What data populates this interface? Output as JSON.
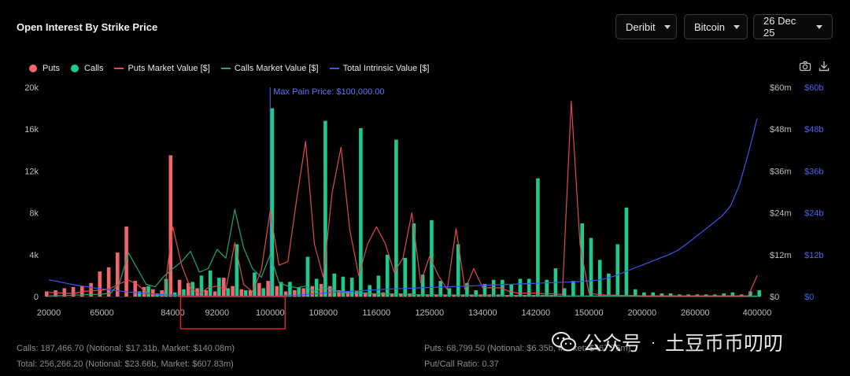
{
  "title": "Open Interest By Strike Price",
  "filters": {
    "exchange": "Deribit",
    "asset": "Bitcoin",
    "expiry": "26 Dec 25"
  },
  "legend": {
    "puts": "Puts",
    "calls": "Calls",
    "puts_mv": "Puts Market Value [$]",
    "calls_mv": "Calls Market Value [$]",
    "total_iv": "Total Intrinsic Value [$]"
  },
  "colors": {
    "puts": "#f0666b",
    "calls": "#1fc98c",
    "puts_line": "#e04a4f",
    "calls_line": "#1aa872",
    "iv_line": "#3d55e8",
    "highlight_box": "#e02a2a"
  },
  "icons": {
    "camera": "camera-icon",
    "download": "download-icon"
  },
  "chart_data": {
    "type": "bar",
    "max_pain_label": "Max Pain Price: $100,000.00",
    "max_pain_strike": 100000,
    "y_left": {
      "ticks": [
        "0",
        "4k",
        "8k",
        "12k",
        "16k",
        "20k"
      ],
      "range": [
        0,
        20000
      ]
    },
    "y_right1": {
      "ticks": [
        "$0",
        "$12m",
        "$24m",
        "$36m",
        "$48m",
        "$60m"
      ],
      "range": [
        0,
        60000000
      ]
    },
    "y_right2": {
      "ticks": [
        "$0",
        "$12b",
        "$24b",
        "$36b",
        "$48b",
        "$60b"
      ],
      "range": [
        0,
        60000000000
      ]
    },
    "x_tick_labels": [
      "20000",
      "65000",
      "84000",
      "92000",
      "100000",
      "108000",
      "116000",
      "125000",
      "134000",
      "142000",
      "150000",
      "200000",
      "260000",
      "400000"
    ],
    "x_tick_index": [
      0,
      6,
      14,
      19,
      25,
      31,
      37,
      43,
      49,
      55,
      61,
      67,
      73,
      80
    ],
    "puts": [
      500,
      600,
      800,
      900,
      1000,
      1300,
      2400,
      2800,
      4200,
      6700,
      1500,
      900,
      700,
      600,
      13500,
      1600,
      1300,
      800,
      600,
      500,
      1800,
      1000,
      700,
      600,
      1300,
      1500,
      1000,
      500,
      600,
      800,
      1000,
      1200,
      1000,
      600,
      500,
      500,
      400,
      300,
      400,
      300,
      300,
      300,
      200,
      200,
      200,
      200,
      200,
      200,
      200,
      200,
      200,
      200,
      150,
      150,
      150,
      150,
      150,
      150,
      100,
      100,
      100,
      100,
      100,
      100,
      100,
      100,
      100,
      100,
      100,
      100,
      100,
      100,
      100,
      100,
      100,
      100,
      100,
      100,
      100,
      100,
      100
    ],
    "calls": [
      0,
      0,
      0,
      0,
      0,
      0,
      0,
      0,
      0,
      0,
      500,
      1000,
      300,
      1700,
      400,
      700,
      1400,
      2000,
      2500,
      1800,
      800,
      5000,
      600,
      2300,
      800,
      18000,
      1400,
      1400,
      900,
      3800,
      1700,
      16800,
      2200,
      1900,
      1800,
      16100,
      1100,
      2000,
      4000,
      15000,
      3700,
      7000,
      2100,
      7300,
      1500,
      800,
      5000,
      1300,
      600,
      1200,
      1600,
      1600,
      1200,
      1700,
      1700,
      11300,
      1600,
      2700,
      800,
      1500,
      7000,
      5600,
      3500,
      2200,
      5000,
      8500,
      700,
      400,
      400,
      300,
      300,
      200,
      200,
      200,
      200,
      200,
      300,
      400,
      200,
      500,
      600
    ],
    "puts_market_value": [
      1200000,
      1100000,
      900000,
      1000000,
      1500000,
      1700000,
      1800000,
      2400000,
      3700000,
      4700000,
      3500000,
      1100000,
      500000,
      200000,
      20000000,
      9000000,
      2400000,
      800000,
      2500000,
      3000000,
      2000000,
      15400000,
      3500000,
      1400000,
      7500000,
      24500000,
      9000000,
      10000000,
      28000000,
      44500000,
      15000000,
      5500000,
      29800000,
      42800000,
      19000000,
      6000000,
      15000000,
      20000000,
      15200000,
      7000000,
      11000000,
      24000000,
      4000000,
      11500000,
      6000000,
      2000000,
      19500000,
      2000000,
      8000000,
      2500000,
      2500000,
      2500000,
      1500000,
      1000000,
      1000000,
      1000000,
      800000,
      800000,
      600000,
      56000000,
      15000000,
      1000000,
      600000,
      400000,
      400000,
      300000,
      300000,
      200000,
      200000,
      200000,
      200000,
      200000,
      200000,
      200000,
      200000,
      200000,
      200000,
      200000,
      200000,
      200000,
      6000000
    ],
    "calls_market_value": [
      200000,
      250000,
      300000,
      400000,
      500000,
      600000,
      700000,
      1000000,
      4000000,
      12500000,
      8000000,
      3500000,
      2800000,
      5800000,
      8000000,
      10000000,
      13000000,
      7000000,
      8000000,
      13500000,
      11000000,
      25000000,
      14000000,
      8000000,
      5500000,
      12000000,
      4000000,
      3000000,
      2500000,
      3000000,
      1500000,
      2500000,
      2000000,
      1200000,
      1000000,
      1000000,
      900000,
      800000,
      700000,
      700000,
      600000,
      600000,
      500000,
      500000,
      500000,
      400000,
      400000,
      400000,
      300000,
      300000,
      300000,
      300000,
      300000,
      300000,
      250000,
      250000,
      250000,
      200000,
      200000,
      200000,
      200000,
      150000,
      150000,
      150000,
      150000,
      150000,
      150000,
      100000,
      100000,
      100000,
      100000,
      100000,
      100000,
      100000,
      100000,
      100000,
      100000,
      100000,
      100000,
      100000,
      100000
    ],
    "total_intrinsic_value": [
      4800000000,
      4300000000,
      3800000000,
      3300000000,
      2900000000,
      2500000000,
      2200000000,
      1900000000,
      1600000000,
      1300000000,
      1100000000,
      900000000,
      700000000,
      500000000,
      350000000,
      250000000,
      200000000,
      150000000,
      120000000,
      100000000,
      100000000,
      100000000,
      100000000,
      100000000,
      100000000,
      100000000,
      150000000,
      250000000,
      400000000,
      600000000,
      800000000,
      1000000000,
      1200000000,
      1350000000,
      1500000000,
      1650000000,
      1800000000,
      1950000000,
      2100000000,
      2200000000,
      2300000000,
      2400000000,
      2500000000,
      2600000000,
      2700000000,
      2800000000,
      2900000000,
      3000000000,
      3100000000,
      3200000000,
      3300000000,
      3400000000,
      3500000000,
      3600000000,
      3700000000,
      3800000000,
      3900000000,
      4000000000,
      4100000000,
      4200000000,
      4300000000,
      4500000000,
      4700000000,
      5200000000,
      6000000000,
      7000000000,
      8000000000,
      9000000000,
      10000000000,
      11000000000,
      12000000000,
      13200000000,
      15000000000,
      17000000000,
      19000000000,
      21000000000,
      23000000000,
      26000000000,
      32000000000,
      41000000000,
      51000000000
    ]
  },
  "footer": {
    "calls": "Calls: 187,466.70 (Notional: $17.31b, Market: $140.08m)",
    "total": "Total: 256,266.20 (Notional: $23.66b, Market: $607.83m)",
    "puts": "Puts: 68,799.50 (Notional: $6.35b, Market: $467.76m)",
    "ratio": "Put/Call Ratio: 0.37"
  },
  "watermark": {
    "label": "公众号",
    "separator": "·",
    "name": "土豆币币叨叨"
  }
}
